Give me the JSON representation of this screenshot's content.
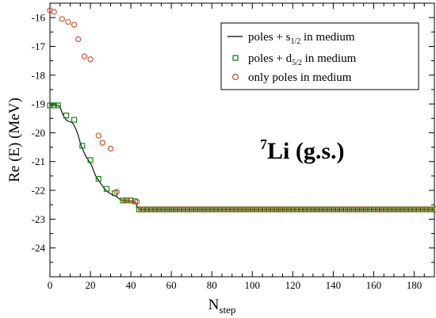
{
  "chart_data": {
    "type": "line",
    "xlabel": "N",
    "xlabel_sub": "step",
    "ylabel": "Re (E) (MeV)",
    "xlim": [
      0,
      190
    ],
    "ylim": [
      -25,
      -15.5
    ],
    "x_ticks": [
      0,
      20,
      40,
      60,
      80,
      100,
      120,
      140,
      160,
      180
    ],
    "y_ticks": [
      -16,
      -17,
      -18,
      -19,
      -20,
      -21,
      -22,
      -23,
      -24
    ],
    "grid": false,
    "legend_position": "top-right",
    "annotation": {
      "sup": "7",
      "text": "Li (g.s.)"
    },
    "series": [
      {
        "name_main": "poles + s",
        "name_sub": "1/2",
        "name_tail": " in medium",
        "style": "line",
        "color": "#000000",
        "x": [
          0,
          2,
          4,
          5,
          6,
          7,
          8,
          9,
          10,
          11,
          12,
          13,
          14,
          15,
          16,
          17,
          18,
          19,
          20,
          21,
          22,
          23,
          24,
          25,
          26,
          27,
          28,
          29,
          30,
          31,
          32,
          33,
          34,
          35,
          36,
          37,
          38,
          39,
          40,
          41,
          42,
          43,
          44,
          190
        ],
        "y": [
          -19.05,
          -19.05,
          -19.05,
          -19.1,
          -19.3,
          -19.45,
          -19.55,
          -19.6,
          -19.62,
          -19.65,
          -19.75,
          -19.9,
          -20.1,
          -20.35,
          -20.55,
          -20.7,
          -20.85,
          -20.95,
          -21.05,
          -21.2,
          -21.4,
          -21.55,
          -21.65,
          -21.75,
          -21.85,
          -21.95,
          -22.02,
          -22.08,
          -22.12,
          -22.15,
          -22.18,
          -22.22,
          -22.28,
          -22.33,
          -22.35,
          -22.36,
          -22.36,
          -22.37,
          -22.37,
          -22.38,
          -22.4,
          -22.55,
          -22.66,
          -22.66
        ]
      },
      {
        "name_main": "poles + d",
        "name_sub": "5/2",
        "name_tail": " in medium",
        "style": "square-marker",
        "color": "#008000",
        "x": [
          0,
          2,
          4,
          8,
          12,
          16,
          20,
          24,
          28,
          32,
          36,
          38,
          40,
          42,
          44
        ],
        "y": [
          -19.05,
          -19.05,
          -19.05,
          -19.4,
          -19.55,
          -20.45,
          -20.95,
          -21.6,
          -21.95,
          -22.1,
          -22.35,
          -22.35,
          -22.35,
          -22.38,
          -22.66
        ],
        "tail_x_start": 44,
        "tail_x_end": 190,
        "tail_x_step": 2,
        "tail_y": -22.66
      },
      {
        "name_main": "only poles in medium",
        "name_sub": "",
        "name_tail": "",
        "style": "circle-marker",
        "color": "#c8461e",
        "x": [
          0,
          2,
          6,
          9,
          12,
          14,
          17,
          20,
          24,
          26,
          30,
          33,
          37,
          40,
          43,
          45
        ],
        "y": [
          -15.75,
          -15.8,
          -16.05,
          -16.15,
          -16.25,
          -16.75,
          -17.35,
          -17.45,
          -20.1,
          -20.35,
          -20.55,
          -22.05,
          -22.35,
          -22.35,
          -22.4,
          -22.66
        ],
        "tail_x_start": 45,
        "tail_x_end": 190,
        "tail_x_step": 2,
        "tail_y": -22.66
      }
    ]
  }
}
